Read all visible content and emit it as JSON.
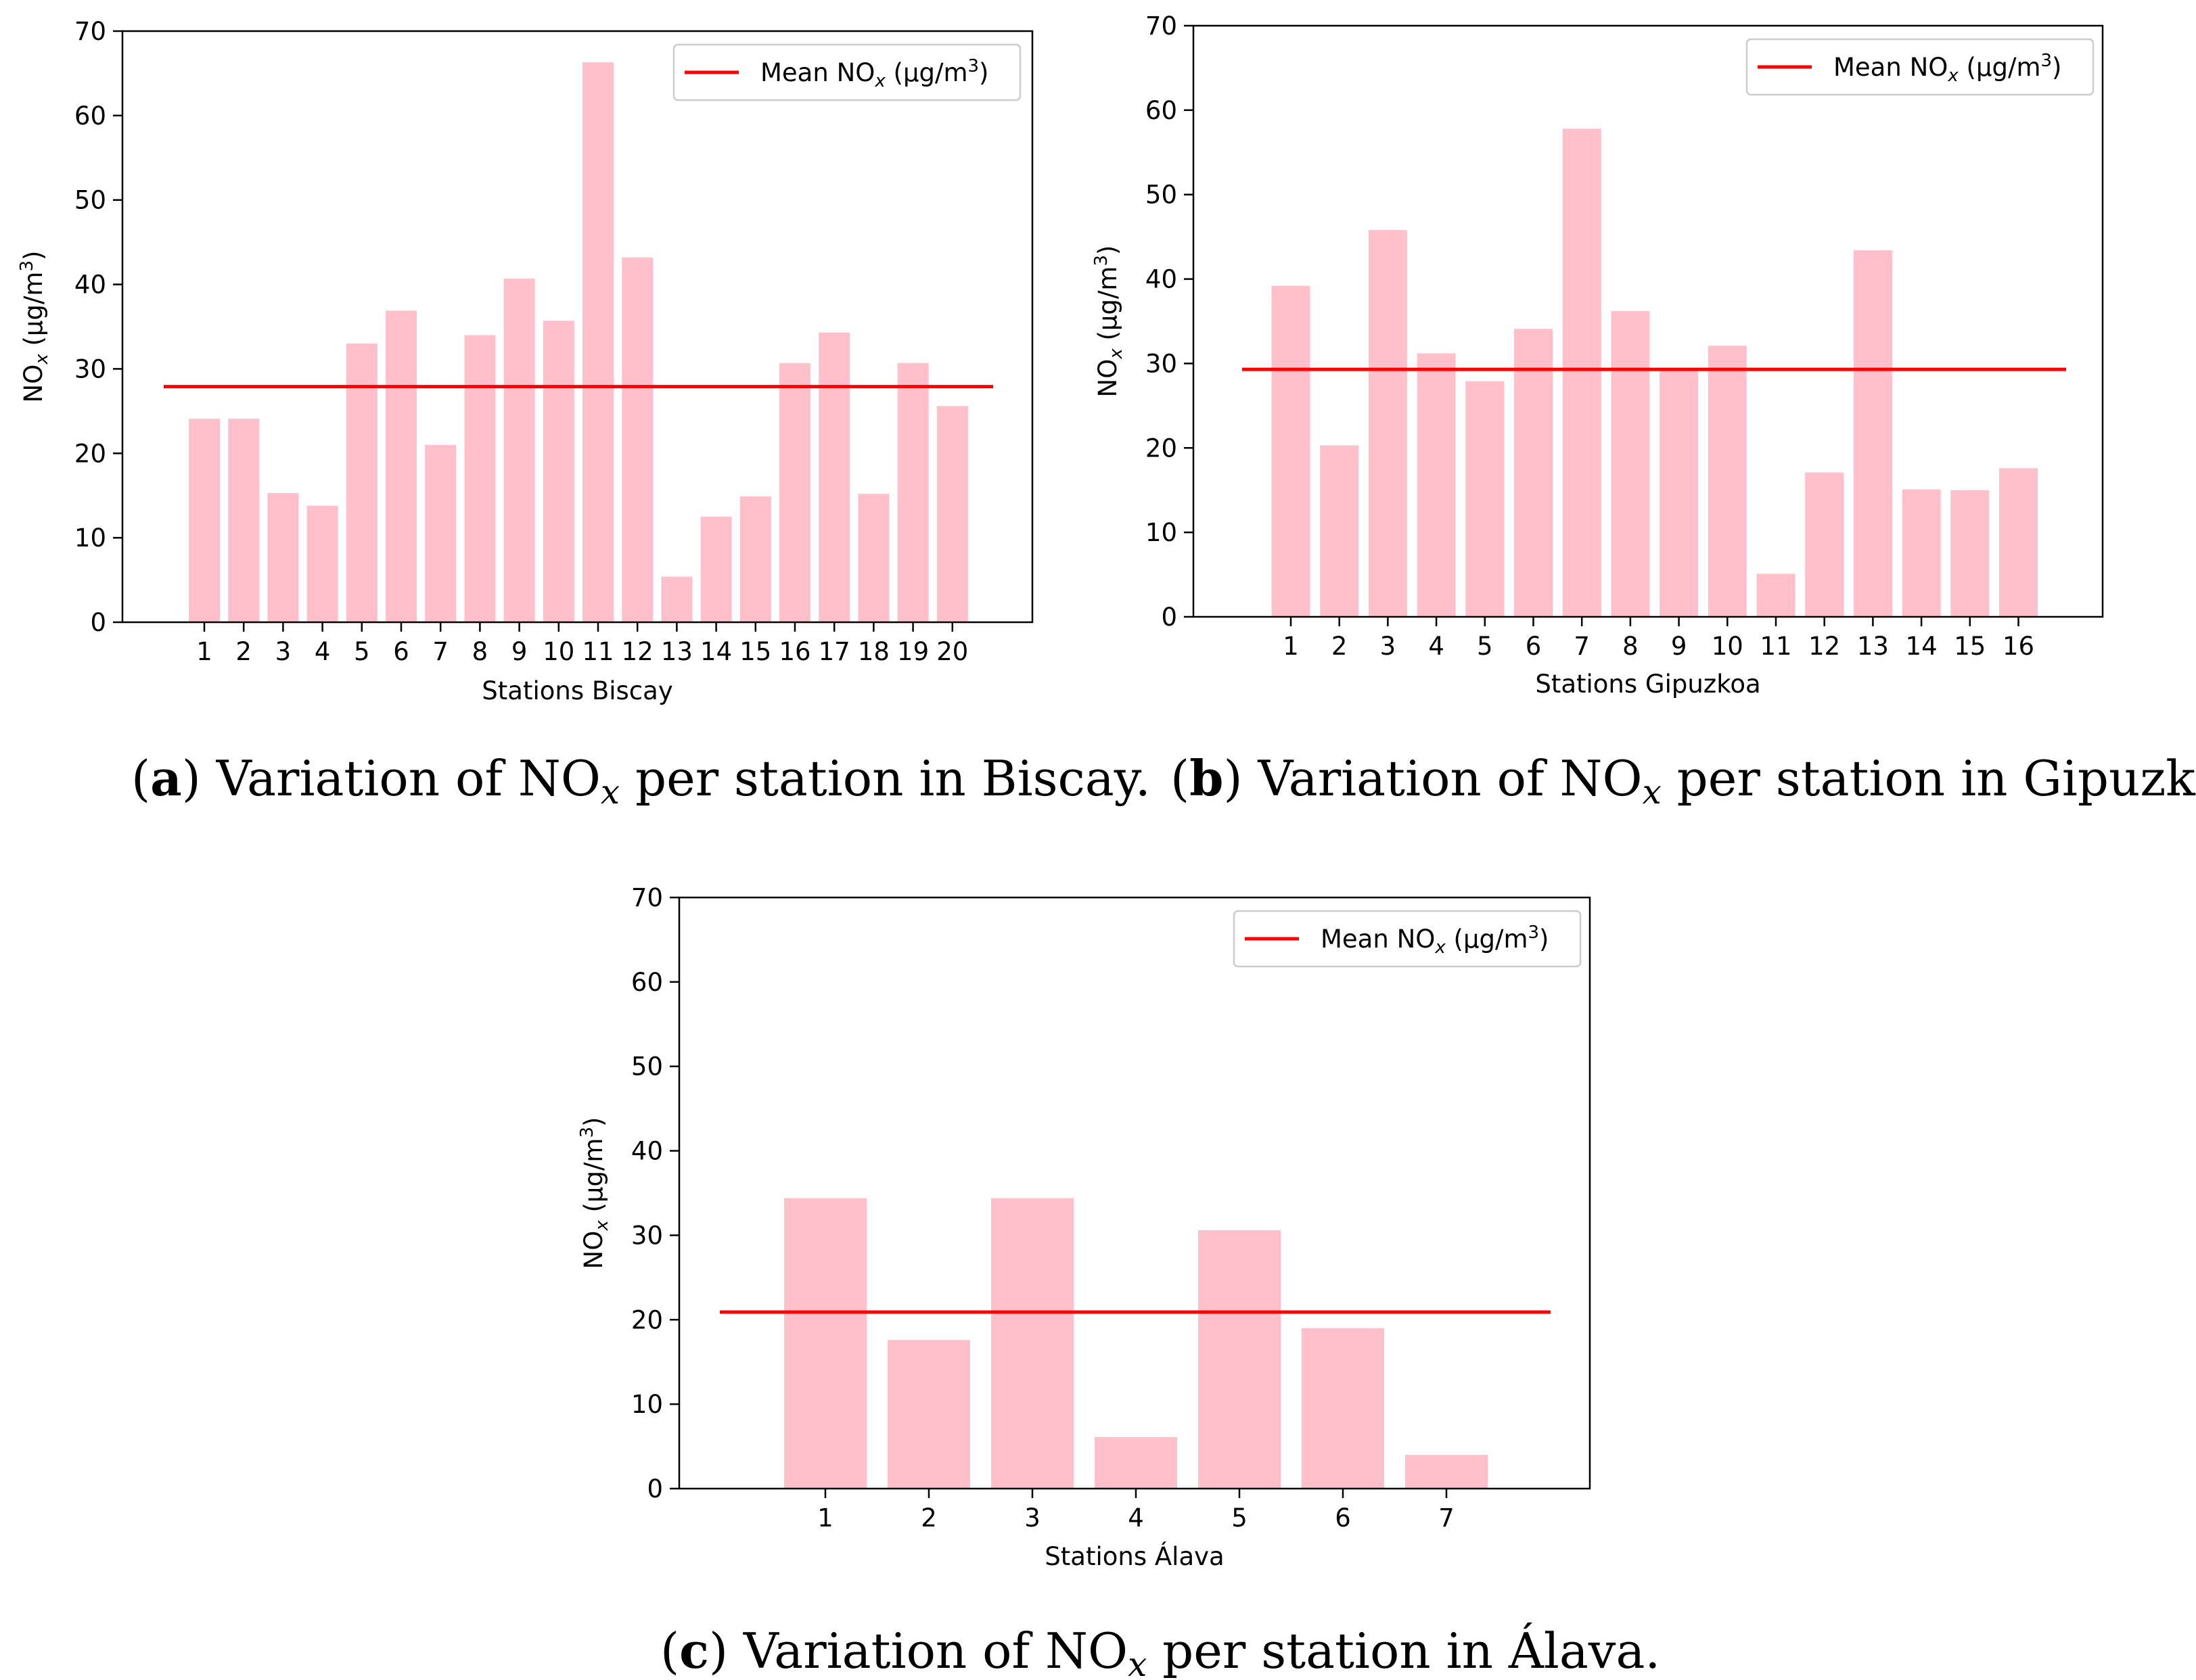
{
  "chart_data": [
    {
      "type": "bar",
      "panel": "a",
      "caption": {
        "label": "a",
        "before": "Variation of NO",
        "sub": "x",
        "after": " per station in Biscay."
      },
      "categories": [
        "1",
        "2",
        "3",
        "4",
        "5",
        "6",
        "7",
        "8",
        "9",
        "10",
        "11",
        "12",
        "13",
        "14",
        "15",
        "16",
        "17",
        "18",
        "19",
        "20"
      ],
      "values": [
        24.1,
        24.1,
        15.3,
        13.8,
        33.0,
        36.9,
        21.0,
        34.0,
        40.7,
        35.7,
        66.3,
        43.2,
        5.4,
        12.5,
        14.9,
        30.7,
        34.3,
        15.2,
        30.7,
        25.6
      ],
      "mean_line": 27.9,
      "xlabel": "Stations Biscay",
      "ylabel": {
        "base": "NO",
        "sub": "x",
        "unit_pre": " (µg/m",
        "sup": "3",
        "unit_post": ")"
      },
      "ylim": [
        0,
        70
      ],
      "yticks": [
        "0",
        "10",
        "20",
        "30",
        "40",
        "50",
        "60",
        "70"
      ],
      "legend": {
        "base": "Mean NO",
        "sub": "x",
        "unit_pre": " (µg/m",
        "sup": "3",
        "unit_post": ")",
        "position": "upper right"
      },
      "bar_color": "#ffc0cb",
      "line_color": "#ff0000"
    },
    {
      "type": "bar",
      "panel": "b",
      "caption": {
        "label": "b",
        "before": "Variation of NO",
        "sub": "x",
        "after": " per station in Gipuzkoa."
      },
      "categories": [
        "1",
        "2",
        "3",
        "4",
        "5",
        "6",
        "7",
        "8",
        "9",
        "10",
        "11",
        "12",
        "13",
        "14",
        "15",
        "16"
      ],
      "values": [
        39.2,
        20.3,
        45.8,
        31.2,
        27.9,
        34.1,
        57.8,
        36.2,
        29.3,
        32.1,
        5.1,
        17.1,
        43.4,
        15.1,
        15.0,
        17.6
      ],
      "mean_line": 29.3,
      "xlabel": "Stations Gipuzkoa",
      "ylabel": {
        "base": "NO",
        "sub": "x",
        "unit_pre": " (µg/m",
        "sup": "3",
        "unit_post": ")"
      },
      "ylim": [
        0,
        70
      ],
      "yticks": [
        "0",
        "10",
        "20",
        "30",
        "40",
        "50",
        "60",
        "70"
      ],
      "legend": {
        "base": "Mean NO",
        "sub": "x",
        "unit_pre": " (µg/m",
        "sup": "3",
        "unit_post": ")",
        "position": "upper right"
      },
      "bar_color": "#ffc0cb",
      "line_color": "#ff0000"
    },
    {
      "type": "bar",
      "panel": "c",
      "caption": {
        "label": "c",
        "before": "Variation of NO",
        "sub": "x",
        "after": " per station in Álava."
      },
      "categories": [
        "1",
        "2",
        "3",
        "4",
        "5",
        "6",
        "7"
      ],
      "values": [
        34.4,
        17.6,
        34.4,
        6.1,
        30.6,
        19.0,
        4.0
      ],
      "mean_line": 20.9,
      "xlabel": "Stations Álava",
      "ylabel": {
        "base": "NO",
        "sub": "x",
        "unit_pre": " (µg/m",
        "sup": "3",
        "unit_post": ")"
      },
      "ylim": [
        0,
        70
      ],
      "yticks": [
        "0",
        "10",
        "20",
        "30",
        "40",
        "50",
        "60",
        "70"
      ],
      "legend": {
        "base": "Mean NO",
        "sub": "x",
        "unit_pre": " (µg/m",
        "sup": "3",
        "unit_post": ")",
        "position": "upper right"
      },
      "bar_color": "#ffc0cb",
      "line_color": "#ff0000"
    }
  ]
}
